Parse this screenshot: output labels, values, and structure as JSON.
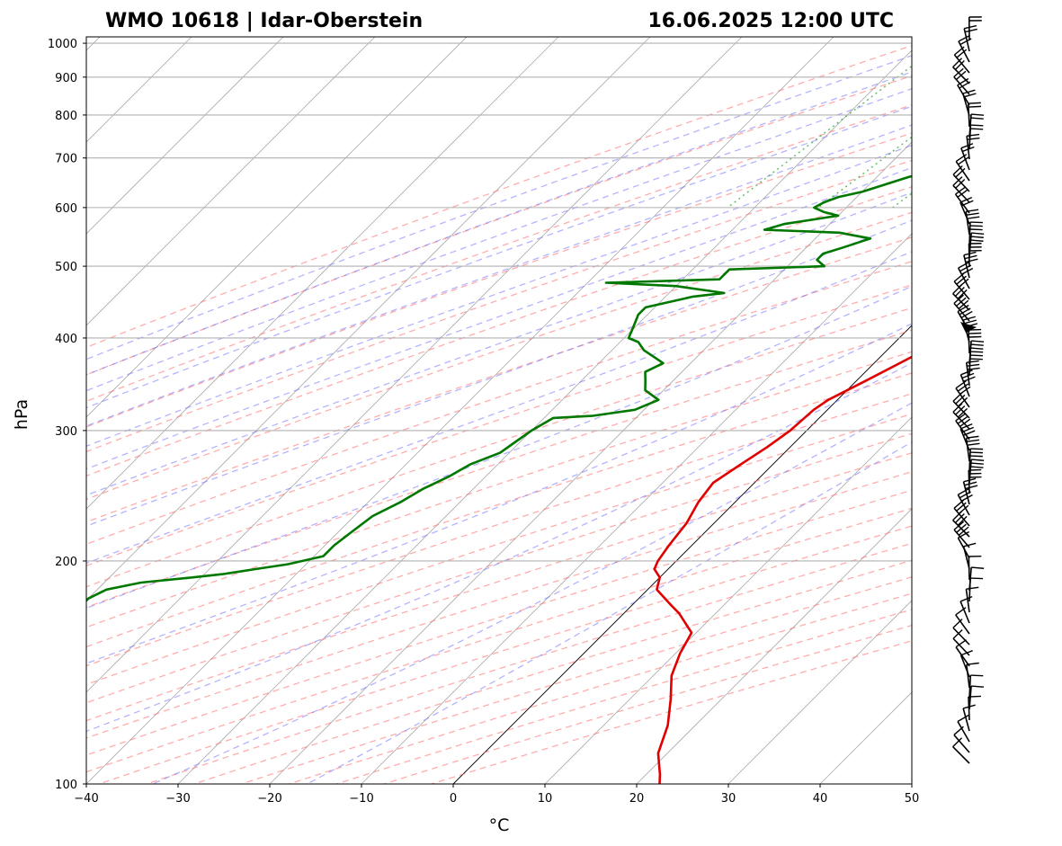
{
  "title_left": "WMO 10618 | Idar-Oberstein",
  "title_right": "16.06.2025 12:00 UTC",
  "chart_data": {
    "type": "line",
    "chart_kind": "skew-T log-P sounding",
    "xlabel": "°C",
    "ylabel": "hPa",
    "xlim": [
      -40,
      50
    ],
    "ylim": [
      1020,
      100
    ],
    "y_scale": "log",
    "x_ticks": [
      -40,
      -30,
      -20,
      -10,
      0,
      10,
      20,
      30,
      40,
      50
    ],
    "y_ticks": [
      1000,
      900,
      800,
      700,
      600,
      500,
      400,
      300,
      200,
      100
    ],
    "grid": true,
    "series": [
      {
        "color": "#e00000",
        "quantity": "temperature",
        "points": [
          [
            985,
            22.4
          ],
          [
            985,
            20.5
          ],
          [
            970,
            19.5
          ],
          [
            940,
            18.5
          ],
          [
            900,
            16.5
          ],
          [
            860,
            14.5
          ],
          [
            845,
            12.8
          ],
          [
            825,
            12.5
          ],
          [
            800,
            12.0
          ],
          [
            780,
            12.0
          ],
          [
            760,
            11.5
          ],
          [
            745,
            12.0
          ],
          [
            735,
            13.5
          ],
          [
            710,
            14.0
          ],
          [
            690,
            14.2
          ],
          [
            660,
            14.0
          ],
          [
            640,
            13.8
          ],
          [
            620,
            13.0
          ],
          [
            600,
            12.8
          ],
          [
            570,
            12.5
          ],
          [
            540,
            11.8
          ],
          [
            520,
            11.5
          ],
          [
            500,
            11.3
          ],
          [
            480,
            11.0
          ],
          [
            465,
            9.8
          ],
          [
            450,
            9.0
          ],
          [
            430,
            8.5
          ],
          [
            410,
            6.5
          ],
          [
            390,
            4.5
          ],
          [
            370,
            2.8
          ],
          [
            350,
            1.0
          ],
          [
            330,
            -1.0
          ],
          [
            320,
            -1.5
          ],
          [
            300,
            -1.8
          ],
          [
            285,
            -2.5
          ],
          [
            270,
            -3.5
          ],
          [
            255,
            -4.5
          ],
          [
            240,
            -4.0
          ],
          [
            225,
            -3.0
          ],
          [
            210,
            -2.5
          ],
          [
            200,
            -2.0
          ],
          [
            195,
            -1.5
          ],
          [
            190,
            0.0
          ],
          [
            183,
            1.0
          ],
          [
            175,
            4.0
          ],
          [
            170,
            6.0
          ],
          [
            160,
            9.5
          ],
          [
            150,
            10.5
          ],
          [
            140,
            12.0
          ],
          [
            130,
            14.5
          ],
          [
            120,
            17.0
          ],
          [
            110,
            19.0
          ],
          [
            103,
            21.5
          ],
          [
            100,
            22.5
          ]
        ]
      },
      {
        "color": "#007800",
        "quantity": "dewpoint",
        "points": [
          [
            985,
            12.0
          ],
          [
            975,
            10.5
          ],
          [
            950,
            11.0
          ],
          [
            920,
            11.8
          ],
          [
            890,
            12.5
          ],
          [
            860,
            13.0
          ],
          [
            840,
            12.5
          ],
          [
            820,
            10.5
          ],
          [
            800,
            9.8
          ],
          [
            780,
            8.5
          ],
          [
            760,
            7.5
          ],
          [
            745,
            7.0
          ],
          [
            743,
            0.0
          ],
          [
            738,
            -1.0
          ],
          [
            733,
            -4.0
          ],
          [
            710,
            -9.0
          ],
          [
            690,
            -12.0
          ],
          [
            670,
            -15.0
          ],
          [
            660,
            -16.5
          ],
          [
            630,
            -20.0
          ],
          [
            620,
            -22.0
          ],
          [
            610,
            -23.0
          ],
          [
            600,
            -23.5
          ],
          [
            592,
            -22.0
          ],
          [
            585,
            -20.0
          ],
          [
            570,
            -25.0
          ],
          [
            560,
            -26.5
          ],
          [
            555,
            -18.0
          ],
          [
            545,
            -14.0
          ],
          [
            530,
            -16.0
          ],
          [
            520,
            -17.5
          ],
          [
            510,
            -17.5
          ],
          [
            500,
            -16.0
          ],
          [
            495,
            -26.0
          ],
          [
            480,
            -26.0
          ],
          [
            475,
            -38.0
          ],
          [
            470,
            -30.0
          ],
          [
            460,
            -24.0
          ],
          [
            455,
            -27.0
          ],
          [
            440,
            -31.0
          ],
          [
            430,
            -31.0
          ],
          [
            420,
            -30.5
          ],
          [
            410,
            -30.0
          ],
          [
            400,
            -29.5
          ],
          [
            395,
            -28.0
          ],
          [
            385,
            -26.5
          ],
          [
            370,
            -23.0
          ],
          [
            360,
            -24.0
          ],
          [
            350,
            -23.0
          ],
          [
            340,
            -22.0
          ],
          [
            330,
            -19.5
          ],
          [
            320,
            -21.0
          ],
          [
            314,
            -25.0
          ],
          [
            312,
            -29.0
          ],
          [
            300,
            -30.0
          ],
          [
            290,
            -30.5
          ],
          [
            280,
            -31.0
          ],
          [
            270,
            -33.0
          ],
          [
            260,
            -34.0
          ],
          [
            250,
            -35.5
          ],
          [
            240,
            -36.5
          ],
          [
            230,
            -38.0
          ],
          [
            220,
            -38.5
          ],
          [
            210,
            -39.0
          ],
          [
            203,
            -39.0
          ],
          [
            198,
            -42.0
          ],
          [
            195,
            -45.0
          ],
          [
            192,
            -48.0
          ],
          [
            190,
            -51.0
          ],
          [
            187,
            -56.0
          ],
          [
            183,
            -59.0
          ],
          [
            178,
            -60.0
          ],
          [
            172,
            -60.0
          ],
          [
            165,
            -58.5
          ],
          [
            158,
            -58.0
          ],
          [
            150,
            -57.0
          ],
          [
            140,
            -57.5
          ],
          [
            130,
            -57.5
          ],
          [
            120,
            -58.0
          ],
          [
            110,
            -59.0
          ],
          [
            100,
            -62.0
          ]
        ]
      }
    ]
  }
}
